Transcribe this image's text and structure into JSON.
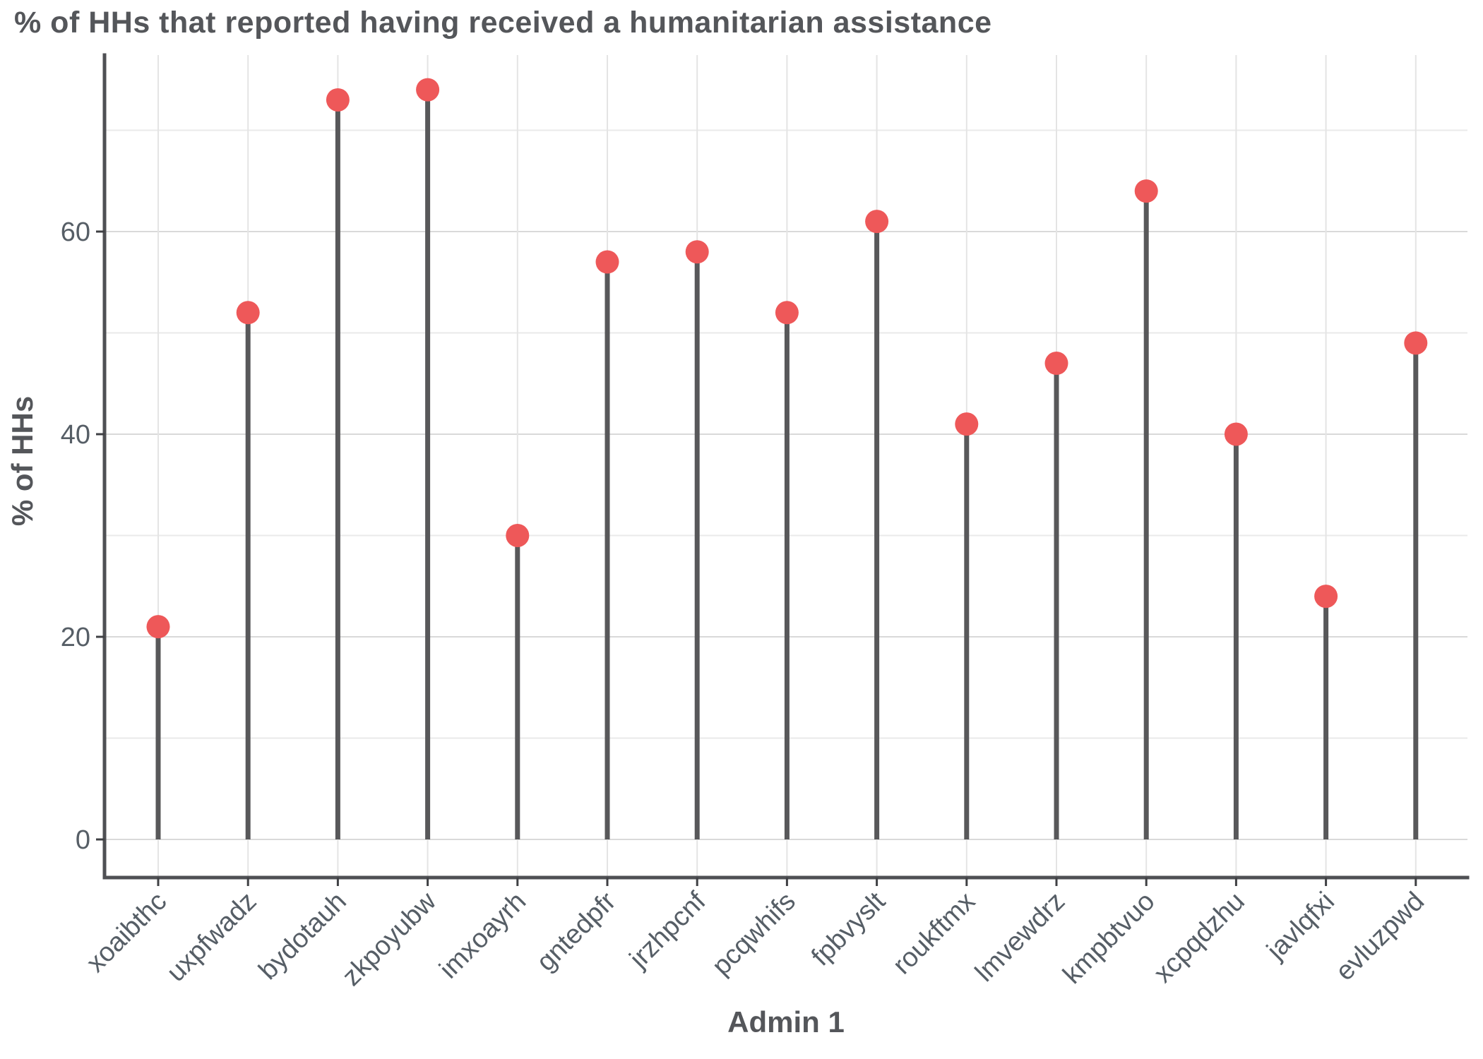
{
  "title": "% of HHs that reported having received a humanitarian assistance",
  "chart_data": {
    "type": "bar",
    "variant": "lollipop",
    "title": "% of HHs that reported having received a humanitarian assistance",
    "xlabel": "Admin 1",
    "ylabel": "% of HHs",
    "categories": [
      "xoaibthc",
      "uxpfwadz",
      "bydotauh",
      "zkpoyubw",
      "imxoayrh",
      "gntedpfr",
      "jrzhpcnf",
      "pcqwhifs",
      "fpbvyslt",
      "roukftmx",
      "lmvewdrz",
      "kmpbtvuo",
      "xcpqdzhu",
      "javlqfxi",
      "evluzpwd"
    ],
    "values": [
      21,
      52,
      73,
      74,
      30,
      57,
      58,
      52,
      61,
      41,
      47,
      64,
      40,
      24,
      49
    ],
    "ylim": [
      0,
      77
    ],
    "yticks": [
      0,
      20,
      40,
      60
    ],
    "minor_gridlines": [
      10,
      30,
      50,
      70
    ],
    "grid": "on",
    "legend": "none",
    "x_tick_label_angle_deg": 45,
    "colors": {
      "dot": "#ee5859",
      "stem": "#58585a",
      "axis_line": "#4f5054",
      "title_text": "#54565a",
      "tick_label_text": "#565e66",
      "grid_major": "#d9d9d9",
      "grid_minor": "#eaeaea",
      "background": "#ffffff"
    }
  }
}
